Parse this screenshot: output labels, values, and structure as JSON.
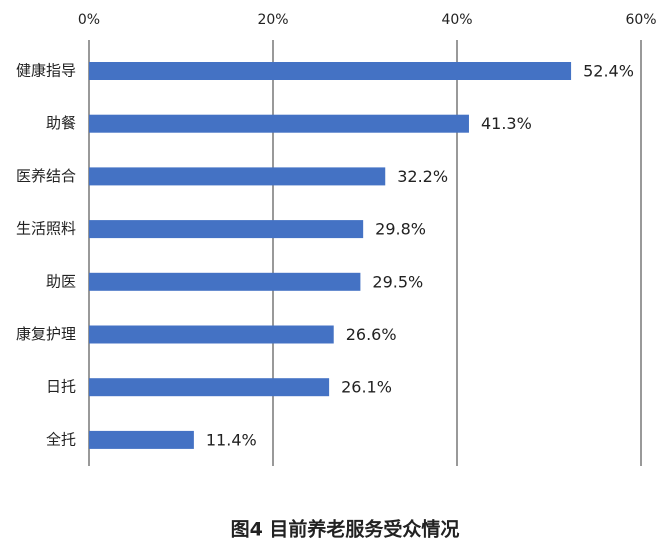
{
  "chart_data": {
    "type": "bar",
    "orientation": "horizontal",
    "title": "图4 目前养老服务受众情况",
    "categories": [
      "健康指导",
      "助餐",
      "医养结合",
      "生活照料",
      "助医",
      "康复护理",
      "日托",
      "全托"
    ],
    "values": [
      52.4,
      41.3,
      32.2,
      29.8,
      29.5,
      26.6,
      26.1,
      11.4
    ],
    "value_labels": [
      "52.4%",
      "41.3%",
      "32.2%",
      "29.8%",
      "29.5%",
      "26.6%",
      "26.1%",
      "11.4%"
    ],
    "color": "#4472c4",
    "xlim": [
      0,
      60
    ],
    "xticks": [
      {
        "value": 0,
        "label": "0%"
      },
      {
        "value": 20,
        "label": "20%"
      },
      {
        "value": 40,
        "label": "40%"
      },
      {
        "value": 60,
        "label": "60%"
      }
    ],
    "grid": true
  }
}
